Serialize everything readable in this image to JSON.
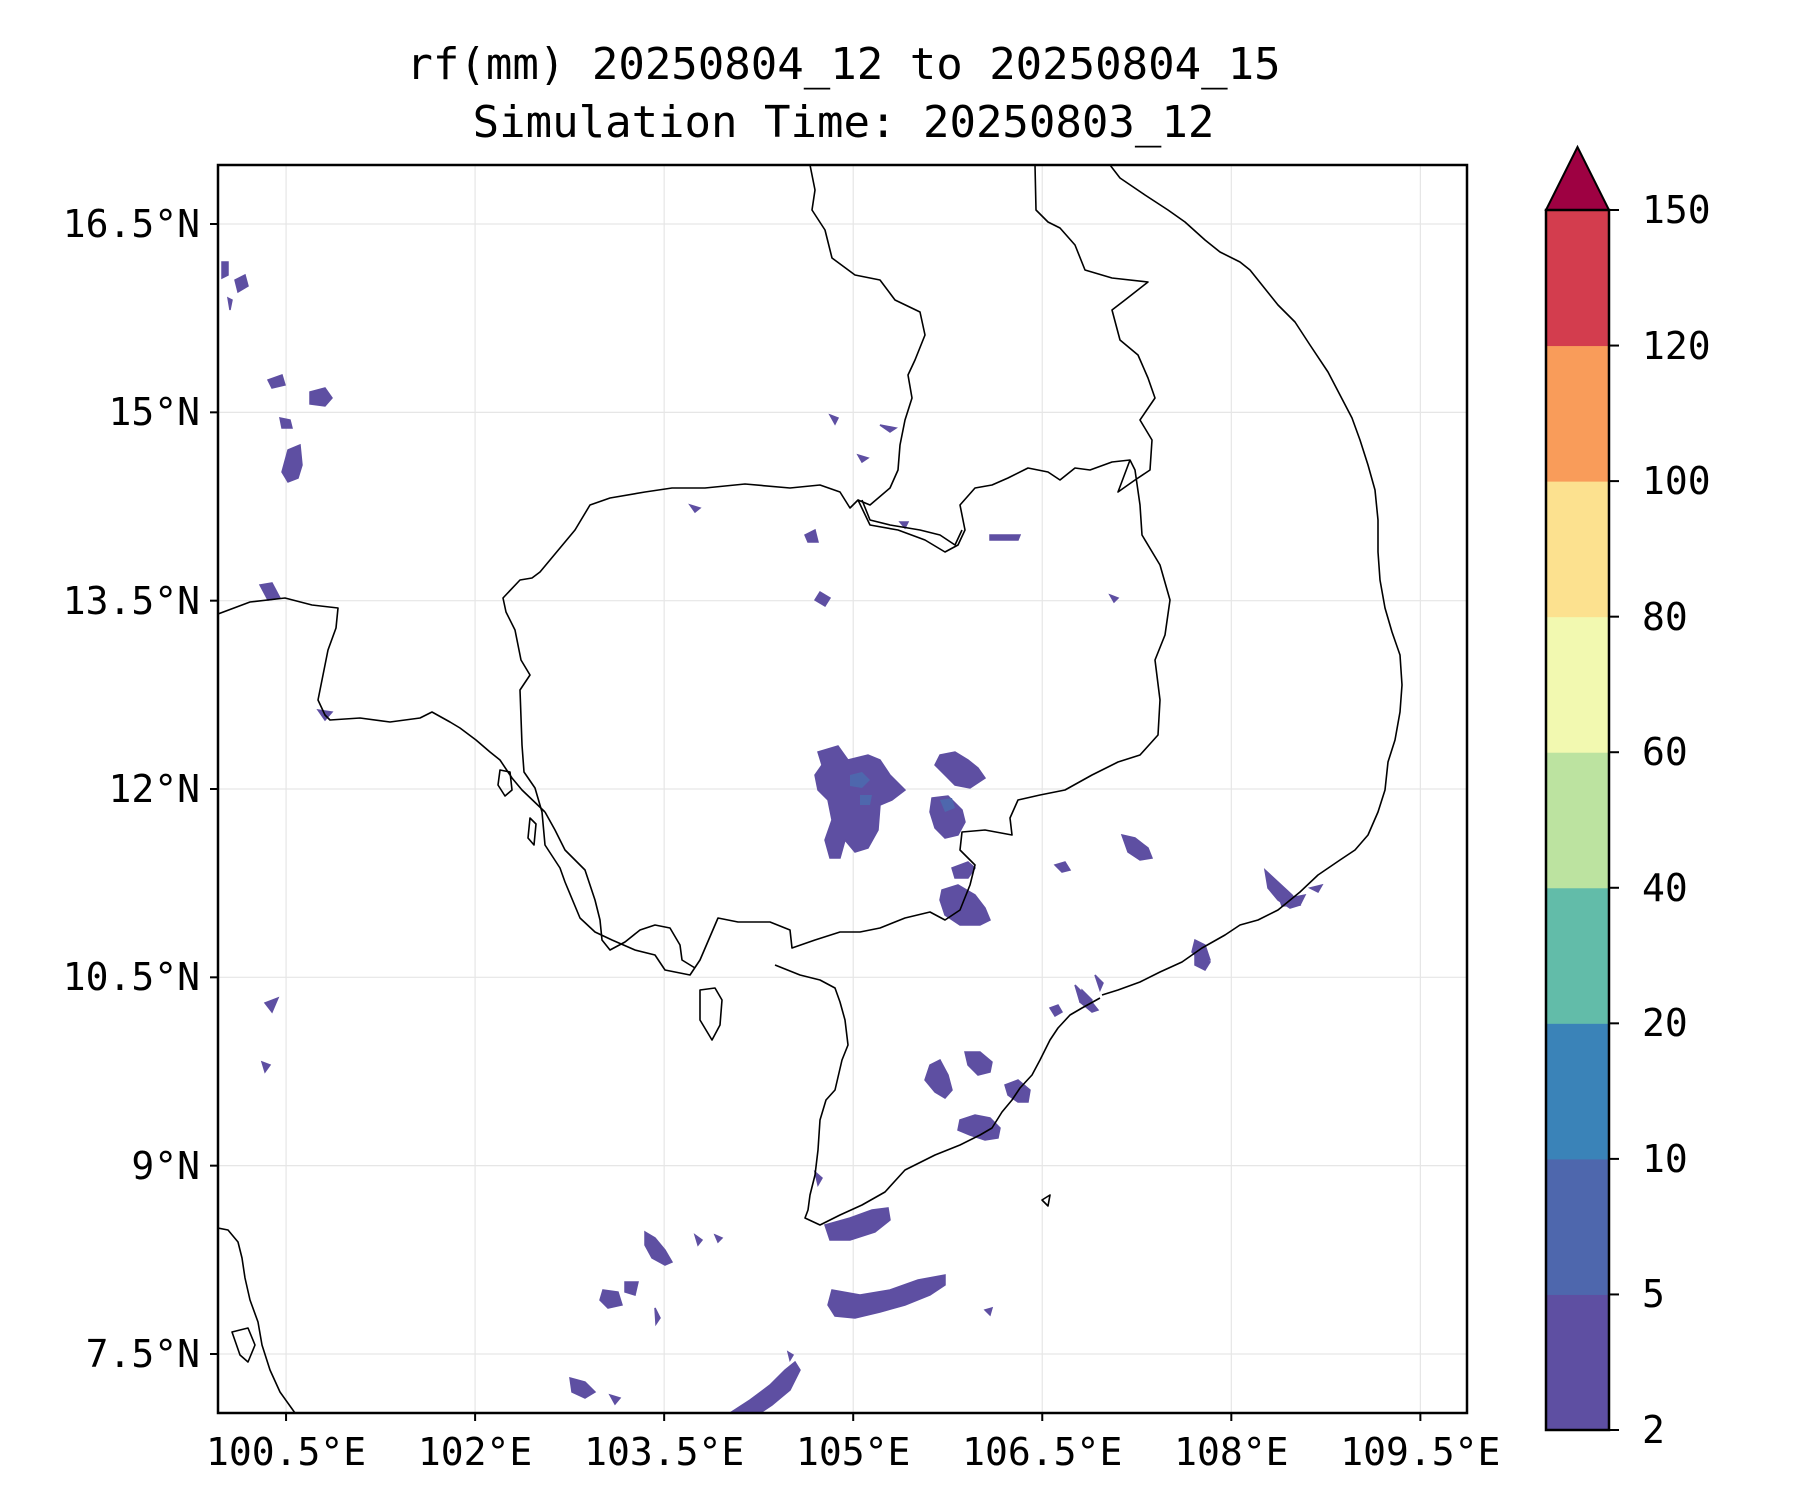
{
  "title": {
    "line1": "rf(mm) 20250804_12 to 20250804_15",
    "line2": "Simulation Time: 20250803_12"
  },
  "map": {
    "type": "filled-contour-map",
    "variable": "rf(mm)",
    "lon_range": [
      99.96,
      109.87
    ],
    "lat_range": [
      7.03,
      16.97
    ],
    "lat_ticks": [
      "16.5°N",
      "15°N",
      "13.5°N",
      "12°N",
      "10.5°N",
      "9°N",
      "7.5°N"
    ],
    "lon_ticks": [
      "100.5°E",
      "102°E",
      "103.5°E",
      "105°E",
      "106.5°E",
      "108°E",
      "109.5°E"
    ],
    "grid": true,
    "coastlines_and_borders": true,
    "rain_patches_level": "2–5 mm",
    "rain_patch_color": "#5e4fa2",
    "inner_patch_color": "#4e67ad"
  },
  "colorbar": {
    "levels": [
      "2",
      "5",
      "10",
      "20",
      "40",
      "60",
      "80",
      "100",
      "120",
      "150"
    ],
    "colors": [
      "#5e4fa2",
      "#4e67ad",
      "#3a83b8",
      "#62bca9",
      "#bce3a0",
      "#f2f9b0",
      "#fce18f",
      "#f99c5a",
      "#d33d4e",
      "#9e0142"
    ],
    "extend": "max"
  }
}
